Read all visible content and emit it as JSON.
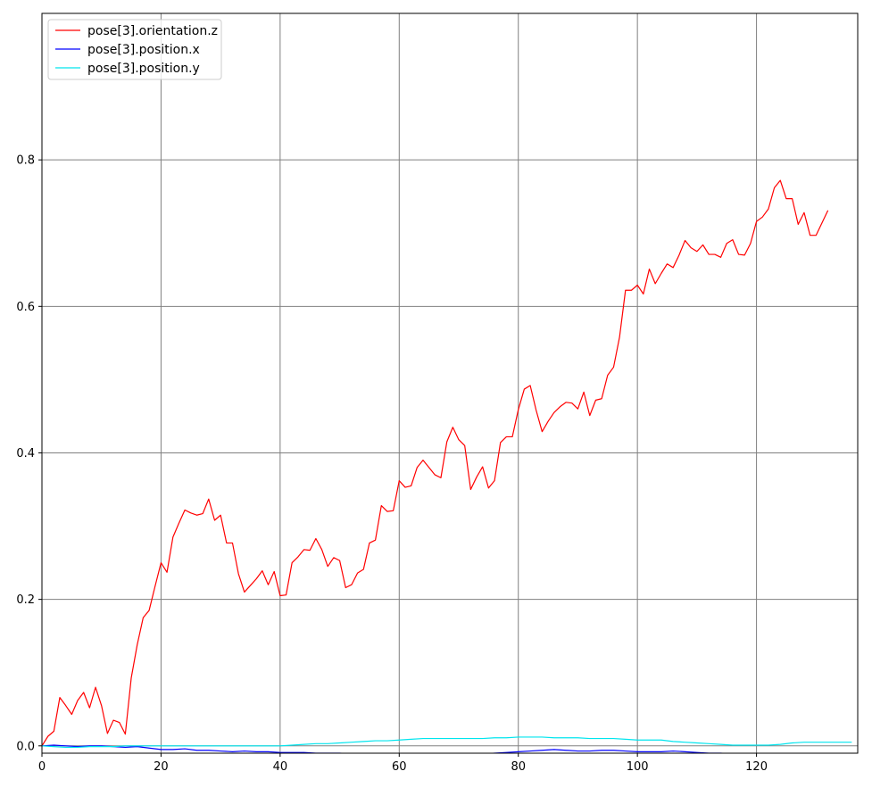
{
  "chart_data": {
    "type": "line",
    "title": "",
    "xlabel": "",
    "ylabel": "",
    "xlim": [
      0,
      137
    ],
    "ylim": [
      -0.01,
      1.0
    ],
    "grid": true,
    "grid_color": "#808080",
    "legend_position": "top-left",
    "x_ticks": [
      {
        "value": 0,
        "label": "0"
      },
      {
        "value": 20,
        "label": "20"
      },
      {
        "value": 40,
        "label": "40"
      },
      {
        "value": 60,
        "label": "60"
      },
      {
        "value": 80,
        "label": "80"
      },
      {
        "value": 100,
        "label": "100"
      },
      {
        "value": 120,
        "label": "120"
      }
    ],
    "y_ticks": [
      {
        "value": 0.0,
        "label": "0.0"
      },
      {
        "value": 0.2,
        "label": "0.2"
      },
      {
        "value": 0.4,
        "label": "0.4"
      },
      {
        "value": 0.6,
        "label": "0.6"
      },
      {
        "value": 0.8,
        "label": "0.8"
      }
    ],
    "series": [
      {
        "name": "pose[3].orientation.z",
        "color": "#ff0000",
        "points": [
          [
            0,
            0.0
          ],
          [
            1,
            0.013
          ],
          [
            2,
            0.02
          ],
          [
            3,
            0.066
          ],
          [
            4,
            0.055
          ],
          [
            5,
            0.043
          ],
          [
            6,
            0.062
          ],
          [
            7,
            0.073
          ],
          [
            8,
            0.052
          ],
          [
            9,
            0.08
          ],
          [
            10,
            0.055
          ],
          [
            11,
            0.017
          ],
          [
            12,
            0.035
          ],
          [
            13,
            0.032
          ],
          [
            14,
            0.016
          ],
          [
            15,
            0.093
          ],
          [
            16,
            0.138
          ],
          [
            17,
            0.175
          ],
          [
            18,
            0.185
          ],
          [
            19,
            0.218
          ],
          [
            20,
            0.25
          ],
          [
            21,
            0.237
          ],
          [
            22,
            0.285
          ],
          [
            23,
            0.304
          ],
          [
            24,
            0.322
          ],
          [
            25,
            0.318
          ],
          [
            26,
            0.315
          ],
          [
            27,
            0.317
          ],
          [
            28,
            0.337
          ],
          [
            29,
            0.308
          ],
          [
            30,
            0.315
          ],
          [
            31,
            0.277
          ],
          [
            32,
            0.277
          ],
          [
            33,
            0.235
          ],
          [
            34,
            0.21
          ],
          [
            35,
            0.219
          ],
          [
            36,
            0.228
          ],
          [
            37,
            0.239
          ],
          [
            38,
            0.22
          ],
          [
            39,
            0.238
          ],
          [
            40,
            0.205
          ],
          [
            41,
            0.206
          ],
          [
            42,
            0.25
          ],
          [
            43,
            0.258
          ],
          [
            44,
            0.268
          ],
          [
            45,
            0.267
          ],
          [
            46,
            0.283
          ],
          [
            47,
            0.268
          ],
          [
            48,
            0.245
          ],
          [
            49,
            0.257
          ],
          [
            50,
            0.253
          ],
          [
            51,
            0.216
          ],
          [
            52,
            0.22
          ],
          [
            53,
            0.236
          ],
          [
            54,
            0.241
          ],
          [
            55,
            0.277
          ],
          [
            56,
            0.281
          ],
          [
            57,
            0.328
          ],
          [
            58,
            0.32
          ],
          [
            59,
            0.321
          ],
          [
            60,
            0.362
          ],
          [
            61,
            0.353
          ],
          [
            62,
            0.355
          ],
          [
            63,
            0.38
          ],
          [
            64,
            0.39
          ],
          [
            65,
            0.38
          ],
          [
            66,
            0.37
          ],
          [
            67,
            0.366
          ],
          [
            68,
            0.415
          ],
          [
            69,
            0.435
          ],
          [
            70,
            0.418
          ],
          [
            71,
            0.41
          ],
          [
            72,
            0.35
          ],
          [
            73,
            0.367
          ],
          [
            74,
            0.381
          ],
          [
            75,
            0.352
          ],
          [
            76,
            0.362
          ],
          [
            77,
            0.414
          ],
          [
            78,
            0.422
          ],
          [
            79,
            0.422
          ],
          [
            80,
            0.459
          ],
          [
            81,
            0.487
          ],
          [
            82,
            0.492
          ],
          [
            83,
            0.458
          ],
          [
            84,
            0.429
          ],
          [
            85,
            0.443
          ],
          [
            86,
            0.455
          ],
          [
            87,
            0.463
          ],
          [
            88,
            0.469
          ],
          [
            89,
            0.468
          ],
          [
            90,
            0.46
          ],
          [
            91,
            0.483
          ],
          [
            92,
            0.451
          ],
          [
            93,
            0.472
          ],
          [
            94,
            0.474
          ],
          [
            95,
            0.506
          ],
          [
            96,
            0.517
          ],
          [
            97,
            0.558
          ],
          [
            98,
            0.622
          ],
          [
            99,
            0.622
          ],
          [
            100,
            0.629
          ],
          [
            101,
            0.617
          ],
          [
            102,
            0.651
          ],
          [
            103,
            0.631
          ],
          [
            104,
            0.645
          ],
          [
            105,
            0.658
          ],
          [
            106,
            0.653
          ],
          [
            107,
            0.67
          ],
          [
            108,
            0.69
          ],
          [
            109,
            0.68
          ],
          [
            110,
            0.675
          ],
          [
            111,
            0.684
          ],
          [
            112,
            0.671
          ],
          [
            113,
            0.671
          ],
          [
            114,
            0.667
          ],
          [
            115,
            0.686
          ],
          [
            116,
            0.691
          ],
          [
            117,
            0.671
          ],
          [
            118,
            0.67
          ],
          [
            119,
            0.686
          ],
          [
            120,
            0.716
          ],
          [
            121,
            0.722
          ],
          [
            122,
            0.733
          ],
          [
            123,
            0.762
          ],
          [
            124,
            0.772
          ],
          [
            125,
            0.747
          ],
          [
            126,
            0.747
          ],
          [
            127,
            0.712
          ],
          [
            128,
            0.728
          ],
          [
            129,
            0.697
          ],
          [
            130,
            0.697
          ],
          [
            131,
            0.714
          ],
          [
            132,
            0.731
          ]
        ]
      },
      {
        "name": "pose[3].position.x",
        "color": "#0000ff",
        "points": [
          [
            0,
            0.0
          ],
          [
            2,
            0.001
          ],
          [
            4,
            0.0
          ],
          [
            6,
            -0.001
          ],
          [
            8,
            0.0
          ],
          [
            10,
            0.0
          ],
          [
            12,
            -0.001
          ],
          [
            14,
            -0.002
          ],
          [
            16,
            -0.001
          ],
          [
            18,
            -0.003
          ],
          [
            20,
            -0.005
          ],
          [
            22,
            -0.005
          ],
          [
            24,
            -0.004
          ],
          [
            26,
            -0.006
          ],
          [
            28,
            -0.006
          ],
          [
            30,
            -0.007
          ],
          [
            32,
            -0.008
          ],
          [
            34,
            -0.007
          ],
          [
            36,
            -0.008
          ],
          [
            38,
            -0.008
          ],
          [
            40,
            -0.009
          ],
          [
            42,
            -0.009
          ],
          [
            44,
            -0.009
          ],
          [
            46,
            -0.01
          ],
          [
            48,
            -0.01
          ],
          [
            50,
            -0.01
          ],
          [
            52,
            -0.011
          ],
          [
            54,
            -0.012
          ],
          [
            56,
            -0.013
          ],
          [
            58,
            -0.012
          ],
          [
            60,
            -0.012
          ],
          [
            62,
            -0.013
          ],
          [
            64,
            -0.013
          ],
          [
            66,
            -0.014
          ],
          [
            68,
            -0.014
          ],
          [
            70,
            -0.013
          ],
          [
            72,
            -0.012
          ],
          [
            74,
            -0.011
          ],
          [
            76,
            -0.01
          ],
          [
            78,
            -0.009
          ],
          [
            80,
            -0.008
          ],
          [
            82,
            -0.007
          ],
          [
            84,
            -0.006
          ],
          [
            86,
            -0.005
          ],
          [
            88,
            -0.006
          ],
          [
            90,
            -0.007
          ],
          [
            92,
            -0.007
          ],
          [
            94,
            -0.006
          ],
          [
            96,
            -0.006
          ],
          [
            98,
            -0.007
          ],
          [
            100,
            -0.008
          ],
          [
            102,
            -0.008
          ],
          [
            104,
            -0.008
          ],
          [
            106,
            -0.007
          ],
          [
            108,
            -0.008
          ],
          [
            110,
            -0.009
          ],
          [
            112,
            -0.01
          ],
          [
            114,
            -0.01
          ],
          [
            116,
            -0.011
          ],
          [
            118,
            -0.012
          ],
          [
            120,
            -0.013
          ],
          [
            122,
            -0.014
          ],
          [
            124,
            -0.015
          ],
          [
            126,
            -0.016
          ],
          [
            128,
            -0.016
          ],
          [
            130,
            -0.015
          ],
          [
            132,
            -0.015
          ],
          [
            134,
            -0.016
          ],
          [
            136,
            -0.016
          ]
        ]
      },
      {
        "name": "pose[3].position.y",
        "color": "#00e5ee",
        "points": [
          [
            0,
            0.0
          ],
          [
            2,
            -0.001
          ],
          [
            4,
            -0.002
          ],
          [
            6,
            -0.002
          ],
          [
            8,
            -0.001
          ],
          [
            10,
            -0.001
          ],
          [
            12,
            -0.001
          ],
          [
            14,
            0.0
          ],
          [
            16,
            0.0
          ],
          [
            18,
            0.0
          ],
          [
            20,
            0.0
          ],
          [
            22,
            0.0
          ],
          [
            24,
            0.0
          ],
          [
            26,
            0.0
          ],
          [
            28,
            0.0
          ],
          [
            30,
            0.0
          ],
          [
            32,
            0.0
          ],
          [
            34,
            0.0
          ],
          [
            36,
            0.0
          ],
          [
            38,
            0.0
          ],
          [
            40,
            0.0
          ],
          [
            42,
            0.001
          ],
          [
            44,
            0.002
          ],
          [
            46,
            0.003
          ],
          [
            48,
            0.003
          ],
          [
            50,
            0.004
          ],
          [
            52,
            0.005
          ],
          [
            54,
            0.006
          ],
          [
            56,
            0.007
          ],
          [
            58,
            0.007
          ],
          [
            60,
            0.008
          ],
          [
            62,
            0.009
          ],
          [
            64,
            0.01
          ],
          [
            66,
            0.01
          ],
          [
            68,
            0.01
          ],
          [
            70,
            0.01
          ],
          [
            72,
            0.01
          ],
          [
            74,
            0.01
          ],
          [
            76,
            0.011
          ],
          [
            78,
            0.011
          ],
          [
            80,
            0.012
          ],
          [
            82,
            0.012
          ],
          [
            84,
            0.012
          ],
          [
            86,
            0.011
          ],
          [
            88,
            0.011
          ],
          [
            90,
            0.011
          ],
          [
            92,
            0.01
          ],
          [
            94,
            0.01
          ],
          [
            96,
            0.01
          ],
          [
            98,
            0.009
          ],
          [
            100,
            0.008
          ],
          [
            102,
            0.008
          ],
          [
            104,
            0.008
          ],
          [
            106,
            0.006
          ],
          [
            108,
            0.005
          ],
          [
            110,
            0.004
          ],
          [
            112,
            0.003
          ],
          [
            114,
            0.002
          ],
          [
            116,
            0.001
          ],
          [
            118,
            0.001
          ],
          [
            120,
            0.001
          ],
          [
            122,
            0.001
          ],
          [
            124,
            0.002
          ],
          [
            126,
            0.004
          ],
          [
            128,
            0.005
          ],
          [
            130,
            0.005
          ],
          [
            132,
            0.005
          ],
          [
            134,
            0.005
          ],
          [
            136,
            0.005
          ]
        ]
      }
    ]
  }
}
